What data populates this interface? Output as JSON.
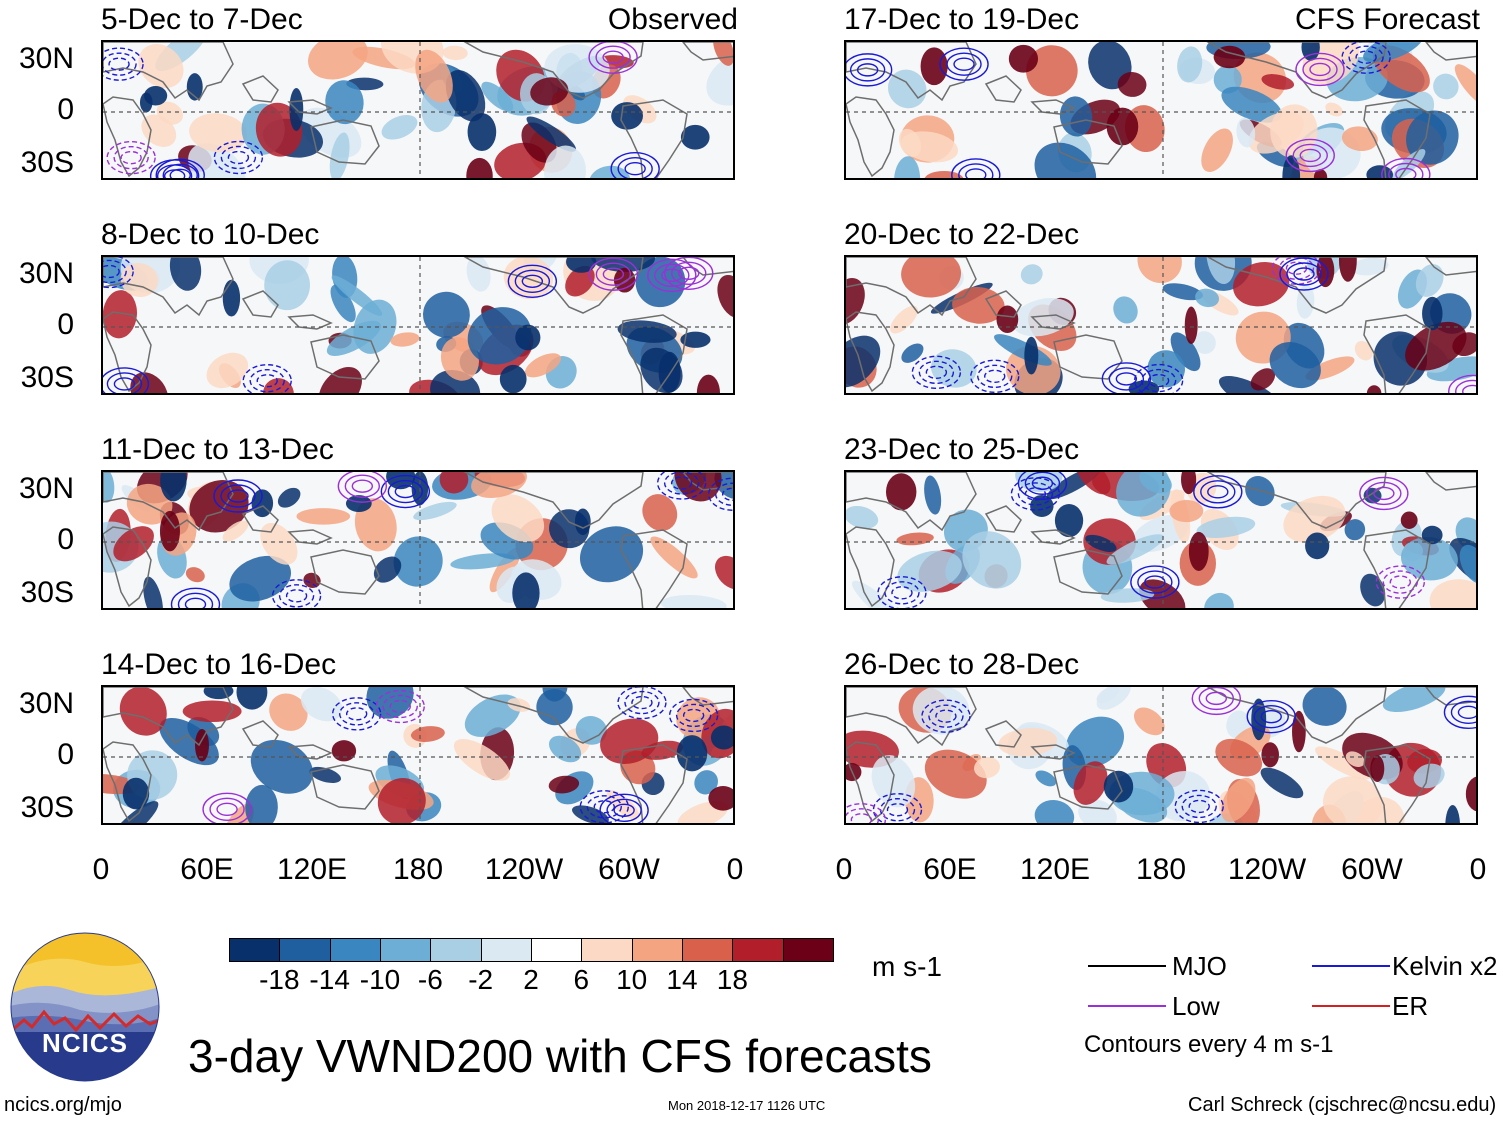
{
  "title": "3-day VWND200 with CFS forecasts",
  "logo": {
    "text": "NCICS"
  },
  "footer": {
    "site": "ncics.org/mjo",
    "timestamp": "Mon 2018-12-17 1126 UTC",
    "credit": "Carl Schreck (cjschrec@ncsu.edu)"
  },
  "left_column": {
    "label": "Observed",
    "panels": [
      {
        "period": "5-Dec to 7-Dec"
      },
      {
        "period": "8-Dec to 10-Dec"
      },
      {
        "period": "11-Dec to 13-Dec"
      },
      {
        "period": "14-Dec to 16-Dec"
      }
    ]
  },
  "right_column": {
    "label": "CFS Forecast",
    "panels": [
      {
        "period": "17-Dec to 19-Dec"
      },
      {
        "period": "20-Dec to 22-Dec"
      },
      {
        "period": "23-Dec to 25-Dec"
      },
      {
        "period": "26-Dec to 28-Dec"
      }
    ]
  },
  "lat_labels": [
    "30N",
    "0",
    "30S"
  ],
  "lon_labels": [
    "0",
    "60E",
    "120E",
    "180",
    "120W",
    "60W",
    "0"
  ],
  "colorbar": {
    "units": "m s-1",
    "ticks": [
      "-18",
      "-14",
      "-10",
      "-6",
      "-2",
      "2",
      "6",
      "10",
      "14",
      "18"
    ],
    "colors": [
      "#08306b",
      "#1f5fa0",
      "#3a86c0",
      "#6caed6",
      "#a9cfe5",
      "#dbe9f3",
      "#ffffff",
      "#fcd9c4",
      "#f5a482",
      "#d9614c",
      "#b21f2b",
      "#6b0016"
    ]
  },
  "legend": {
    "items": [
      {
        "label": "MJO",
        "color": "#000000"
      },
      {
        "label": "Kelvin x2",
        "color": "#1a1ad6"
      },
      {
        "label": "Low",
        "color": "#9b30d9"
      },
      {
        "label": "ER",
        "color": "#d42020"
      }
    ],
    "note": "Contours every 4 m s-1"
  }
}
